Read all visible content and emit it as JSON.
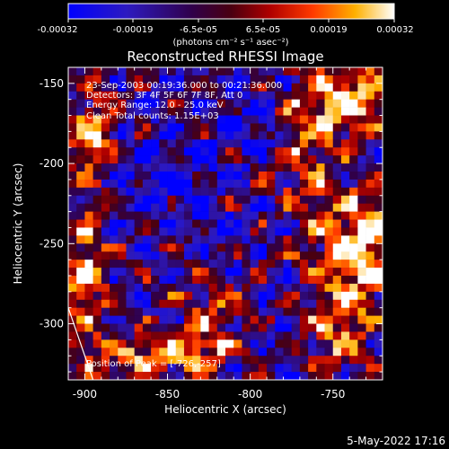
{
  "colorbar": {
    "ticks": [
      "-0.00032",
      "-0.00019",
      "-6.5e-05",
      "6.5e-05",
      "0.00019",
      "0.00032"
    ],
    "unit_label": "(photons cm⁻² s⁻¹ asec⁻²)"
  },
  "chart_data": {
    "type": "heatmap",
    "title": "Reconstructed RHESSI Image",
    "xlabel": "Heliocentric X (arcsec)",
    "ylabel": "Heliocentric Y (arcsec)",
    "xlim": [
      -910,
      -720
    ],
    "ylim": [
      -335,
      -140
    ],
    "x_ticks": [
      "-900",
      "-850",
      "-800",
      "-750"
    ],
    "y_ticks": [
      "-150",
      "-200",
      "-250",
      "-300"
    ],
    "x_tick_values": [
      -900,
      -850,
      -800,
      -750
    ],
    "y_tick_values": [
      -150,
      -200,
      -250,
      -300
    ],
    "color_range": [
      -0.00032,
      0.00032
    ],
    "colormap": [
      "#0000ff",
      "#3a1b8f",
      "#2a0038",
      "#7a0000",
      "#ff2e00",
      "#ff9a00",
      "#ffff80",
      "#ffffff"
    ],
    "limb_line": [
      [
        -910,
        -290
      ],
      [
        -895,
        -335
      ]
    ],
    "peak": [
      -726,
      -257
    ],
    "annotations": {
      "time": "23-Sep-2003 00:19:36.000 to 00:21:36.000",
      "detectors": "Detectors: 3F 4F 5F 6F 7F 8F, Att 0",
      "energy": "Energy Range: 12.0 - 25.0 keV",
      "clean": "Clean    Total counts: 1.15E+03",
      "peak_text": "Position of Peak = [-726,-257]"
    }
  },
  "footer": {
    "date": "5-May-2022 17:16"
  }
}
